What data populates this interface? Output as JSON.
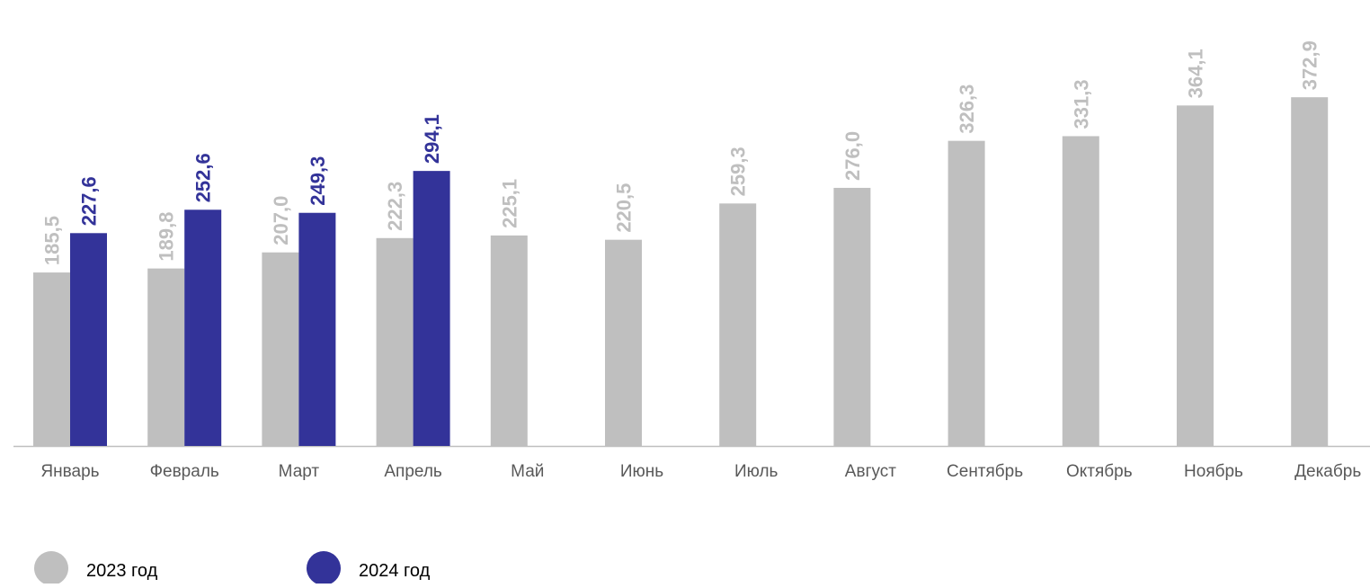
{
  "chart_data": {
    "type": "bar",
    "categories": [
      "Январь",
      "Февраль",
      "Март",
      "Апрель",
      "Май",
      "Июнь",
      "Июль",
      "Август",
      "Сентябрь",
      "Октябрь",
      "Ноябрь",
      "Декабрь"
    ],
    "series": [
      {
        "name": "2023 год",
        "color": "#bfbfbf",
        "values": [
          185.5,
          189.8,
          207.0,
          222.3,
          225.1,
          220.5,
          259.3,
          276.0,
          326.3,
          331.3,
          364.1,
          372.9
        ],
        "value_labels": [
          "185,5",
          "189,8",
          "207,0",
          "222,3",
          "225,1",
          "220,5",
          "259,3",
          "276,0",
          "326,3",
          "331,3",
          "364,1",
          "372,9"
        ]
      },
      {
        "name": "2024 год",
        "color": "#333399",
        "values": [
          227.6,
          252.6,
          249.3,
          294.1,
          null,
          null,
          null,
          null,
          null,
          null,
          null,
          null
        ],
        "value_labels": [
          "227,6",
          "252,6",
          "249,3",
          "294,1",
          null,
          null,
          null,
          null,
          null,
          null,
          null,
          null
        ]
      }
    ]
  }
}
